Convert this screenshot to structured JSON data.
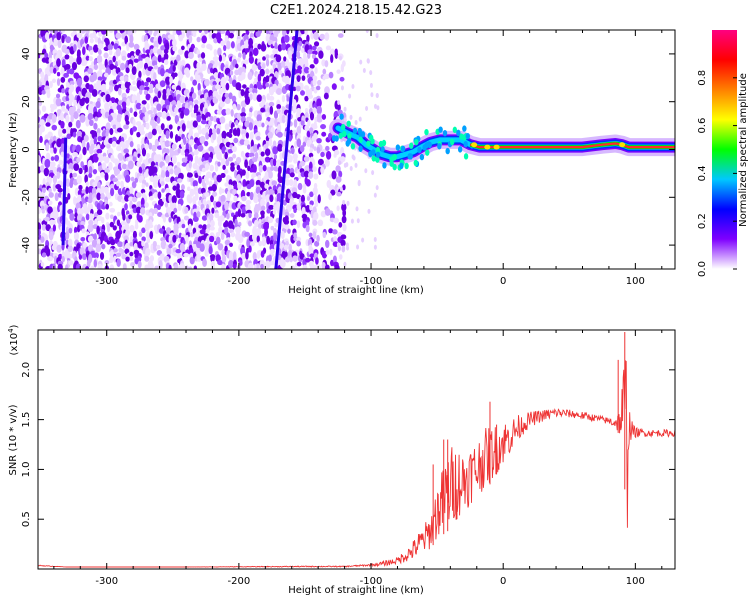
{
  "figure": {
    "title": "C2E1.2024.218.15.42.G23"
  },
  "chart_data": [
    {
      "type": "heatmap",
      "xlabel": "Height of straight line (km)",
      "ylabel": "Frequency (Hz)",
      "xlim": [
        -352,
        130
      ],
      "ylim": [
        -50,
        50
      ],
      "xticks": [
        -300,
        -200,
        -100,
        0,
        100
      ],
      "yticks": [
        -40,
        -20,
        0,
        20,
        40
      ],
      "noise_region": {
        "x": [
          -352,
          -125
        ],
        "y": [
          -50,
          50
        ]
      },
      "trace_points": [
        [
          -125,
          9
        ],
        [
          -118,
          7
        ],
        [
          -110,
          5
        ],
        [
          -104,
          2
        ],
        [
          -98,
          0
        ],
        [
          -92,
          -2
        ],
        [
          -86,
          -3
        ],
        [
          -80,
          -3
        ],
        [
          -74,
          -2
        ],
        [
          -68,
          -1
        ],
        [
          -62,
          1
        ],
        [
          -55,
          3
        ],
        [
          -48,
          4
        ],
        [
          -40,
          4
        ],
        [
          -32,
          4
        ],
        [
          -25,
          2
        ],
        [
          -18,
          1
        ],
        [
          -10,
          1
        ],
        [
          -2,
          1
        ],
        [
          10,
          1
        ],
        [
          25,
          1
        ],
        [
          45,
          1
        ],
        [
          60,
          1
        ],
        [
          75,
          2
        ],
        [
          85,
          2.5
        ],
        [
          90,
          2
        ],
        [
          95,
          1
        ],
        [
          110,
          1
        ],
        [
          130,
          1
        ]
      ],
      "vertical_streaks": [
        {
          "x_start": -172,
          "y_start": -50,
          "x_end": -156,
          "y_end": 50
        },
        {
          "x_start": -333,
          "y_start": -40,
          "x_end": -331,
          "y_end": 5
        }
      ],
      "colorbar": {
        "label": "Normalized spectral amplitude",
        "range": [
          0,
          1
        ],
        "ticks": [
          0.0,
          0.2,
          0.4,
          0.6,
          0.8
        ],
        "colormap": [
          "#ffffff",
          "#7f00ff",
          "#0000ff",
          "#00c8ff",
          "#00ff00",
          "#ffff00",
          "#ff8000",
          "#ff0000",
          "#ff0080"
        ]
      },
      "grid": false
    },
    {
      "type": "line",
      "xlabel": "Height of straight line (km)",
      "ylabel": "SNR (10 * v/v)",
      "y_multiplier_label": "(x10",
      "y_multiplier_exp": "4",
      "y_multiplier_close": ")",
      "xlim": [
        -352,
        130
      ],
      "ylim": [
        0,
        2.4
      ],
      "xticks": [
        -300,
        -200,
        -100,
        0,
        100
      ],
      "yticks": [
        0.5,
        1.0,
        1.5,
        2.0
      ],
      "ytick_labels": [
        "0.5",
        "1.0",
        "1.5",
        "2.0"
      ],
      "series": [
        {
          "color": "#ee3333",
          "envelope": [
            [
              -352,
              0.03,
              0.04
            ],
            [
              -330,
              0.02,
              0.02
            ],
            [
              -250,
              0.02,
              0.02
            ],
            [
              -150,
              0.02,
              0.03
            ],
            [
              -120,
              0.02,
              0.03
            ],
            [
              -100,
              0.03,
              0.05
            ],
            [
              -90,
              0.03,
              0.08
            ],
            [
              -80,
              0.05,
              0.12
            ],
            [
              -70,
              0.08,
              0.25
            ],
            [
              -60,
              0.15,
              0.45
            ],
            [
              -55,
              0.2,
              0.55
            ],
            [
              -50,
              0.3,
              0.85
            ],
            [
              -45,
              0.35,
              1.05
            ],
            [
              -40,
              0.4,
              1.25
            ],
            [
              -35,
              0.5,
              1.25
            ],
            [
              -30,
              0.55,
              1.2
            ],
            [
              -25,
              0.65,
              1.25
            ],
            [
              -20,
              0.7,
              1.3
            ],
            [
              -15,
              0.8,
              1.4
            ],
            [
              -10,
              0.85,
              1.45
            ],
            [
              -5,
              0.95,
              1.45
            ],
            [
              0,
              1.05,
              1.5
            ],
            [
              5,
              1.15,
              1.5
            ],
            [
              10,
              1.25,
              1.55
            ],
            [
              15,
              1.35,
              1.55
            ],
            [
              20,
              1.42,
              1.58
            ],
            [
              30,
              1.48,
              1.6
            ],
            [
              40,
              1.52,
              1.62
            ],
            [
              50,
              1.52,
              1.6
            ],
            [
              60,
              1.5,
              1.58
            ],
            [
              70,
              1.48,
              1.55
            ],
            [
              80,
              1.45,
              1.52
            ],
            [
              85,
              1.4,
              1.55
            ],
            [
              88,
              1.35,
              1.6
            ],
            [
              90,
              1.2,
              1.9
            ],
            [
              92,
              0.8,
              2.3
            ],
            [
              93,
              0.15,
              2.38
            ],
            [
              94,
              0.4,
              2.1
            ],
            [
              95,
              1.2,
              1.7
            ],
            [
              97,
              1.3,
              1.5
            ],
            [
              100,
              1.32,
              1.42
            ],
            [
              110,
              1.33,
              1.4
            ],
            [
              130,
              1.33,
              1.4
            ]
          ],
          "spikes": [
            [
              -53,
              1.05
            ],
            [
              -45,
              1.3
            ],
            [
              -42,
              1.3
            ],
            [
              -35,
              0.8
            ],
            [
              -10,
              1.68
            ],
            [
              -5,
              1.45
            ],
            [
              87,
              2.1
            ],
            [
              92,
              2.38
            ],
            [
              93,
              0.15
            ]
          ]
        }
      ],
      "grid": false
    }
  ]
}
